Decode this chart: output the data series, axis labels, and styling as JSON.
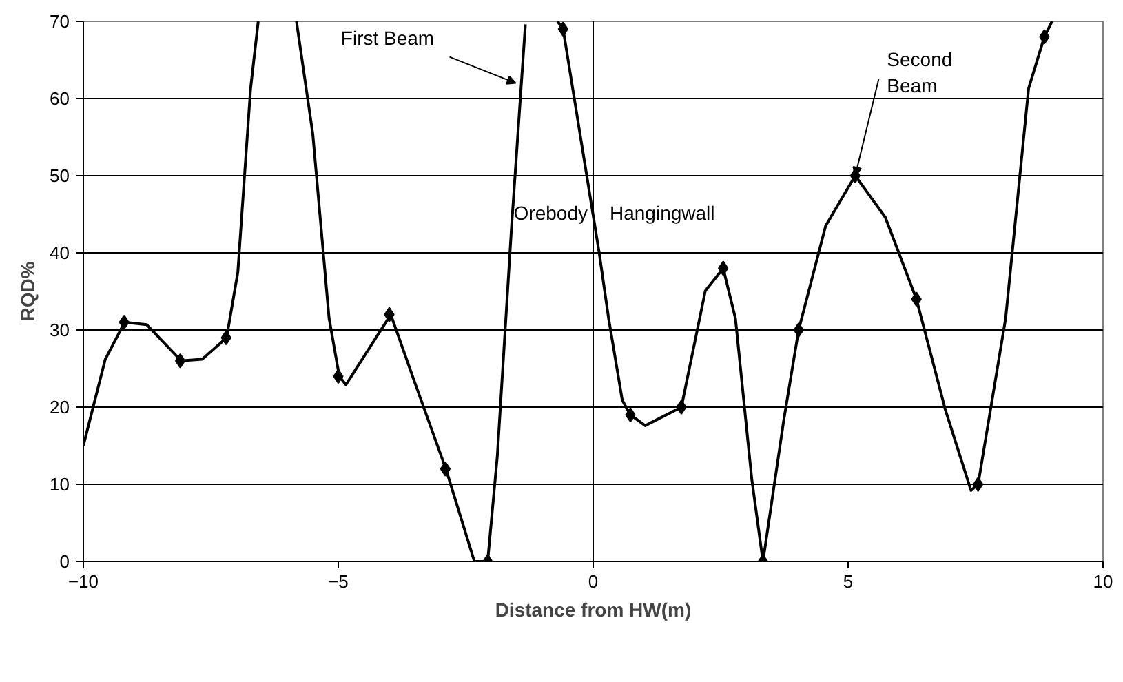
{
  "chart_data": {
    "type": "line",
    "xlabel": "Distance from HW(m)",
    "ylabel": "RQD%",
    "xlim": [
      -10,
      10
    ],
    "ylim": [
      0,
      70
    ],
    "xticks": [
      -10,
      -5,
      0,
      5,
      10
    ],
    "yticks": [
      0,
      10,
      20,
      30,
      40,
      50,
      60,
      70
    ],
    "grid": "y",
    "series": [
      {
        "color": "#000000",
        "marker": "none",
        "line_style": "solid",
        "x": [
          -10,
          -9.57,
          -9.19,
          -8.76,
          -8.08,
          -7.67,
          -7.19,
          -6.97,
          -6.72,
          -6.57,
          -6.2,
          -5.82,
          -5.5,
          -5.18,
          -4.98,
          -4.85,
          -3.97,
          -3.5,
          -2.89,
          -2.33,
          -2.07,
          -1.88,
          -1.6,
          -1.33,
          -1.0,
          -0.7,
          -0.59,
          0.12,
          0.3,
          0.57,
          0.73,
          1.02,
          1.73,
          2.2,
          2.55,
          2.79,
          3.11,
          3.33,
          3.74,
          4.03,
          4.56,
          5.14,
          5.73,
          6.34,
          6.91,
          7.41,
          7.55,
          8.09,
          8.54,
          8.85,
          9.0
        ],
        "values": [
          15,
          26.2,
          31,
          30.7,
          26,
          26.2,
          29,
          37.5,
          61.3,
          70,
          null,
          70,
          55.4,
          31.5,
          24,
          22.9,
          32,
          23.2,
          12,
          0,
          0,
          13.7,
          43.5,
          69.6,
          null,
          70,
          69,
          39.9,
          31.6,
          20.9,
          19,
          17.6,
          20,
          35.1,
          38,
          31.5,
          10.7,
          0,
          18.4,
          30,
          43.5,
          50,
          44.6,
          34,
          19.6,
          9.2,
          10,
          31.5,
          61.3,
          68,
          70
        ]
      },
      {
        "type": "scatter",
        "color": "#000000",
        "marker": "diamond",
        "x": [
          -9.2,
          -8.1,
          -7.2,
          -5.0,
          -4.0,
          -2.9,
          -2.07,
          -0.59,
          0.73,
          1.73,
          2.55,
          3.33,
          4.03,
          5.14,
          6.34,
          7.55,
          8.85
        ],
        "values": [
          31,
          26,
          29,
          24,
          32,
          12,
          0,
          69,
          19,
          20,
          38,
          0,
          30,
          50,
          34,
          10,
          68
        ]
      }
    ],
    "ref_lines": [
      {
        "axis": "x",
        "value": 0
      }
    ],
    "annotations": [
      {
        "text": "First Beam",
        "x": -1.52,
        "y": 62
      },
      {
        "text": "Second\nBeam",
        "x": 5.14,
        "y": 50
      },
      "Orebody",
      "Hangingwall"
    ]
  }
}
